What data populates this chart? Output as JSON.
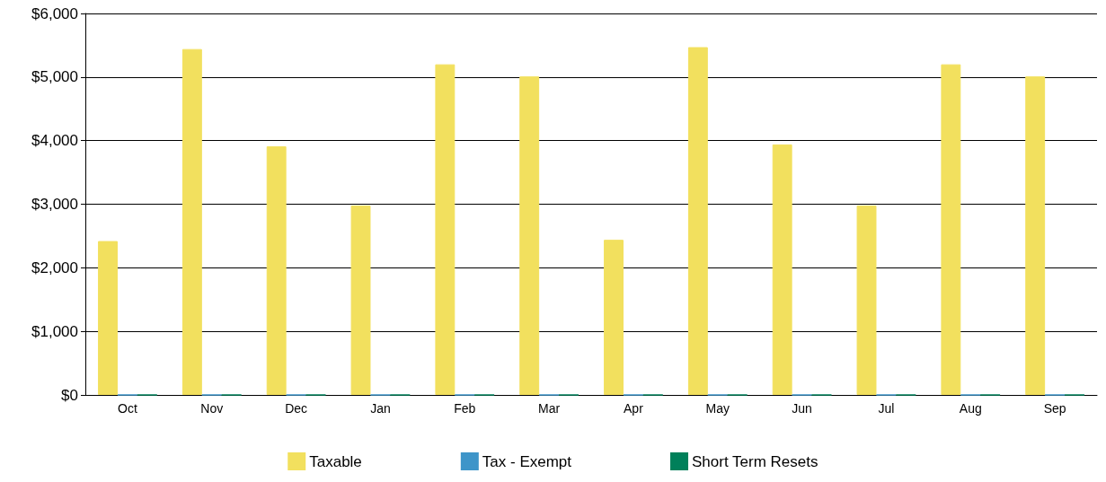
{
  "chart_data": {
    "type": "bar",
    "categories": [
      "Oct",
      "Nov",
      "Dec",
      "Jan",
      "Feb",
      "Mar",
      "Apr",
      "May",
      "Jun",
      "Jul",
      "Aug",
      "Sep"
    ],
    "series": [
      {
        "name": "Taxable",
        "color": "#f2e05e",
        "values": [
          2420,
          5440,
          3910,
          2980,
          5200,
          5010,
          2440,
          5470,
          3940,
          2980,
          5200,
          5010
        ]
      },
      {
        "name": "Tax - Exempt",
        "color": "#3e95c9",
        "values": [
          0,
          0,
          0,
          0,
          0,
          0,
          0,
          0,
          0,
          0,
          0,
          0
        ]
      },
      {
        "name": "Short Term Resets",
        "color": "#00805a",
        "values": [
          0,
          0,
          0,
          0,
          0,
          0,
          0,
          0,
          0,
          0,
          0,
          0
        ]
      }
    ],
    "ylim": [
      0,
      6000
    ],
    "yticks": [
      {
        "value": 0,
        "label": "$0"
      },
      {
        "value": 1000,
        "label": "$1,000"
      },
      {
        "value": 2000,
        "label": "$2,000"
      },
      {
        "value": 3000,
        "label": "$3,000"
      },
      {
        "value": 4000,
        "label": "$4,000"
      },
      {
        "value": 5000,
        "label": "$5,000"
      },
      {
        "value": 6000,
        "label": "$6,000"
      }
    ],
    "grid": "y",
    "legend": "bottom"
  }
}
